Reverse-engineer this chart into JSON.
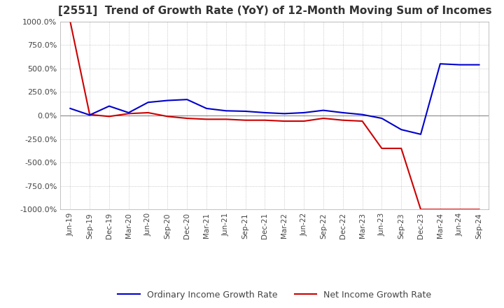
{
  "title": "[2551]  Trend of Growth Rate (YoY) of 12-Month Moving Sum of Incomes",
  "title_fontsize": 11,
  "ylim": [
    -1000,
    1000
  ],
  "yticks": [
    1000.0,
    750.0,
    500.0,
    250.0,
    0.0,
    -250.0,
    -500.0,
    -750.0,
    -1000.0
  ],
  "background_color": "#ffffff",
  "grid_color": "#aaaaaa",
  "x_labels": [
    "Jun-19",
    "Sep-19",
    "Dec-19",
    "Mar-20",
    "Jun-20",
    "Sep-20",
    "Dec-20",
    "Mar-21",
    "Jun-21",
    "Sep-21",
    "Dec-21",
    "Mar-22",
    "Jun-22",
    "Sep-22",
    "Dec-22",
    "Mar-23",
    "Jun-23",
    "Sep-23",
    "Dec-23",
    "Mar-24",
    "Jun-24",
    "Sep-24"
  ],
  "ordinary_income": [
    75,
    5,
    100,
    30,
    140,
    160,
    170,
    75,
    50,
    45,
    30,
    20,
    30,
    55,
    30,
    10,
    -30,
    -150,
    -200,
    550,
    540,
    540
  ],
  "net_income": [
    1000,
    10,
    -10,
    20,
    30,
    -10,
    -30,
    -40,
    -40,
    -50,
    -50,
    -60,
    -60,
    -30,
    -50,
    -60,
    -350,
    -350,
    -1000,
    -1000,
    -1000,
    -1000
  ],
  "ordinary_color": "#0000cc",
  "net_color": "#cc0000",
  "line_width": 1.5,
  "legend_ordinary": "Ordinary Income Growth Rate",
  "legend_net": "Net Income Growth Rate"
}
